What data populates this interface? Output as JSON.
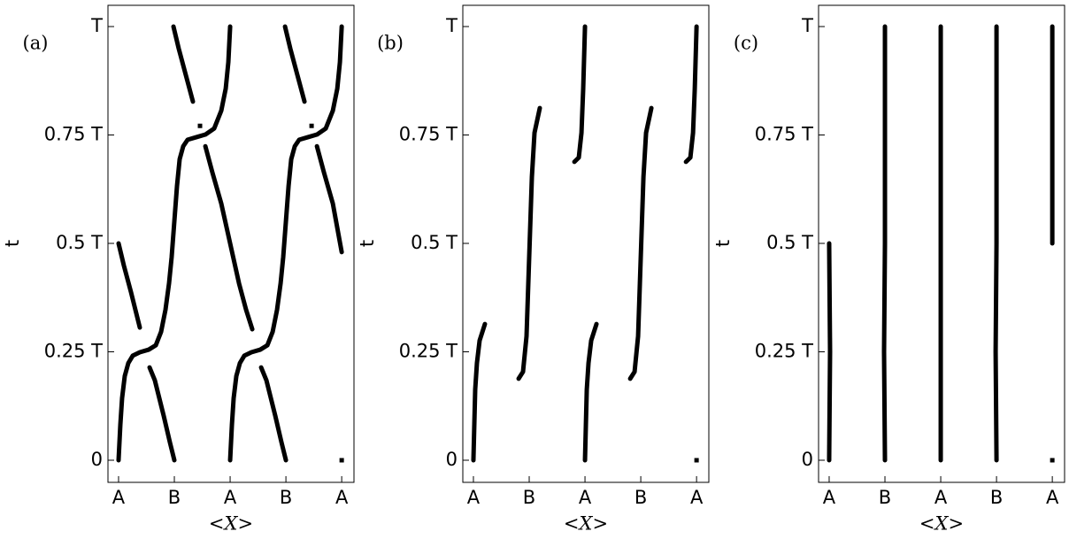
{
  "chart_data": [
    {
      "type": "line",
      "title": "(a)",
      "xlabel": "<X>",
      "ylabel": "t",
      "xlim": [
        -0.19,
        4.22
      ],
      "ylim": [
        -0.051,
        1.049
      ],
      "xticks": [
        {
          "value": 0,
          "label": "A"
        },
        {
          "value": 1,
          "label": "B"
        },
        {
          "value": 2,
          "label": "A"
        },
        {
          "value": 3,
          "label": "B"
        },
        {
          "value": 4,
          "label": "A"
        }
      ],
      "yticks": [
        0,
        {
          "value": 0.25,
          "label": "0.25 T"
        },
        {
          "value": 0.5,
          "label": "0.5 T"
        },
        {
          "value": 0.75,
          "label": "0.75 T"
        },
        {
          "value": 1,
          "label": "T"
        }
      ],
      "series": [
        {
          "color": "#000000",
          "x": [
            0,
            0.032,
            0.063,
            0.111,
            0.175,
            0.254,
            0.381,
            0.54,
            0.667,
            0.762,
            0.841,
            0.905,
            0.952,
            1.0,
            1.048,
            1.095,
            1.159,
            1.238,
            1.397,
            1.556,
            1.714,
            1.841,
            1.921,
            1.968,
            2.0
          ],
          "values": [
            0,
            0.082,
            0.143,
            0.194,
            0.224,
            0.241,
            0.249,
            0.255,
            0.265,
            0.296,
            0.347,
            0.408,
            0.469,
            0.551,
            0.633,
            0.694,
            0.724,
            0.739,
            0.745,
            0.751,
            0.765,
            0.806,
            0.857,
            0.918,
            1.0
          ]
        },
        {
          "color": "#000000",
          "x": [
            2,
            2.032,
            2.063,
            2.111,
            2.175,
            2.254,
            2.381,
            2.54,
            2.667,
            2.762,
            2.841,
            2.905,
            2.952,
            3.0,
            3.048,
            3.095,
            3.159,
            3.238,
            3.397,
            3.556,
            3.714,
            3.841,
            3.921,
            3.968,
            4.0
          ],
          "values": [
            0,
            0.082,
            0.143,
            0.194,
            0.224,
            0.241,
            0.249,
            0.255,
            0.265,
            0.296,
            0.347,
            0.408,
            0.469,
            0.551,
            0.633,
            0.694,
            0.724,
            0.739,
            0.745,
            0.751,
            0.765,
            0.806,
            0.857,
            0.918,
            1.0
          ]
        },
        {
          "color": "#000000",
          "x": [
            0,
            0.095,
            0.222,
            0.381
          ],
          "values": [
            0.5,
            0.449,
            0.388,
            0.306
          ]
        },
        {
          "color": "#000000",
          "x": [
            0.556,
            0.651,
            0.81,
            0.921,
            1.0
          ],
          "values": [
            0.214,
            0.184,
            0.102,
            0.041,
            0
          ]
        },
        {
          "color": "#000000",
          "x": [
            0.984,
            1.079,
            1.206,
            1.333
          ],
          "values": [
            1.0,
            0.949,
            0.888,
            0.827
          ]
        },
        {
          "color": "#000000",
          "x": [
            1.556,
            1.683,
            1.841,
            2.0,
            2.159,
            2.286,
            2.397
          ],
          "values": [
            0.724,
            0.663,
            0.592,
            0.5,
            0.408,
            0.347,
            0.302
          ]
        },
        {
          "color": "#000000",
          "x": [
            2.556,
            2.651,
            2.81,
            2.921,
            3.0
          ],
          "values": [
            0.214,
            0.184,
            0.102,
            0.041,
            0
          ]
        },
        {
          "color": "#000000",
          "x": [
            2.984,
            3.079,
            3.206,
            3.333
          ],
          "values": [
            1.0,
            0.949,
            0.888,
            0.827
          ]
        },
        {
          "color": "#000000",
          "x": [
            3.556,
            3.683,
            3.841,
            4.0
          ],
          "values": [
            0.724,
            0.663,
            0.592,
            0.48
          ]
        },
        {
          "color": "#000000",
          "x": [
            1.46
          ],
          "values": [
            0.771
          ]
        },
        {
          "color": "#000000",
          "x": [
            3.46
          ],
          "values": [
            0.771
          ]
        },
        {
          "color": "#000000",
          "x": [
            4.0
          ],
          "values": [
            0
          ]
        }
      ]
    },
    {
      "type": "line",
      "title": "(b)",
      "xlabel": "<X>",
      "ylabel": "t",
      "xlim": [
        -0.19,
        4.22
      ],
      "ylim": [
        -0.051,
        1.049
      ],
      "xticks": [
        {
          "value": 0,
          "label": "A"
        },
        {
          "value": 1,
          "label": "B"
        },
        {
          "value": 2,
          "label": "A"
        },
        {
          "value": 3,
          "label": "B"
        },
        {
          "value": 4,
          "label": "A"
        }
      ],
      "yticks": [
        0,
        {
          "value": 0.25,
          "label": "0.25 T"
        },
        {
          "value": 0.5,
          "label": "0.5 T"
        },
        {
          "value": 0.75,
          "label": "0.75 T"
        },
        {
          "value": 1,
          "label": "T"
        }
      ],
      "series": [
        {
          "color": "#000000",
          "x": [
            0,
            0.016,
            0.032,
            0.063,
            0.111,
            0.206
          ],
          "values": [
            0,
            0.082,
            0.163,
            0.224,
            0.276,
            0.314
          ]
        },
        {
          "color": "#000000",
          "x": [
            0.81,
            0.889,
            0.952,
            0.984,
            1.016,
            1.048,
            1.095,
            1.19
          ],
          "values": [
            0.188,
            0.204,
            0.286,
            0.408,
            0.531,
            0.653,
            0.755,
            0.812
          ]
        },
        {
          "color": "#000000",
          "x": [
            1.81,
            1.889,
            1.937,
            1.968,
            2.0
          ],
          "values": [
            0.688,
            0.698,
            0.755,
            0.857,
            1.0
          ]
        },
        {
          "color": "#000000",
          "x": [
            2,
            2.016,
            2.032,
            2.063,
            2.111,
            2.206
          ],
          "values": [
            0,
            0.082,
            0.163,
            0.224,
            0.276,
            0.314
          ]
        },
        {
          "color": "#000000",
          "x": [
            2.81,
            2.889,
            2.952,
            2.984,
            3.016,
            3.048,
            3.095,
            3.19
          ],
          "values": [
            0.188,
            0.204,
            0.286,
            0.408,
            0.531,
            0.653,
            0.755,
            0.812
          ]
        },
        {
          "color": "#000000",
          "x": [
            3.81,
            3.889,
            3.937,
            3.968,
            4.0
          ],
          "values": [
            0.688,
            0.698,
            0.755,
            0.857,
            1.0
          ]
        },
        {
          "color": "#000000",
          "x": [
            4.0
          ],
          "values": [
            0
          ]
        }
      ]
    },
    {
      "type": "line",
      "title": "(c)",
      "xlabel": "<X>",
      "ylabel": "t",
      "xlim": [
        -0.19,
        4.22
      ],
      "ylim": [
        -0.051,
        1.049
      ],
      "xticks": [
        {
          "value": 0,
          "label": "A"
        },
        {
          "value": 1,
          "label": "B"
        },
        {
          "value": 2,
          "label": "A"
        },
        {
          "value": 3,
          "label": "B"
        },
        {
          "value": 4,
          "label": "A"
        }
      ],
      "yticks": [
        0,
        {
          "value": 0.25,
          "label": "0.25 T"
        },
        {
          "value": 0.5,
          "label": "0.5 T"
        },
        {
          "value": 0.75,
          "label": "0.75 T"
        },
        {
          "value": 1,
          "label": "T"
        }
      ],
      "series": [
        {
          "color": "#000000",
          "x": [
            0,
            0.016,
            0
          ],
          "values": [
            0,
            0.25,
            0.5
          ]
        },
        {
          "color": "#000000",
          "x": [
            1.0,
            0.984,
            1.0,
            1.0,
            1.0
          ],
          "values": [
            0,
            0.25,
            0.5,
            0.75,
            1.0
          ]
        },
        {
          "color": "#000000",
          "x": [
            2.0,
            2.0,
            2.0,
            2.0,
            2.0
          ],
          "values": [
            0,
            0.25,
            0.5,
            0.75,
            1.0
          ]
        },
        {
          "color": "#000000",
          "x": [
            3.0,
            2.984,
            3.0,
            3.0,
            3.0
          ],
          "values": [
            0,
            0.25,
            0.5,
            0.75,
            1.0
          ]
        },
        {
          "color": "#000000",
          "x": [
            4.0,
            4.0,
            4.0
          ],
          "values": [
            0.5,
            0.75,
            1.0
          ]
        },
        {
          "color": "#000000",
          "x": [
            4.0
          ],
          "values": [
            0
          ]
        }
      ]
    }
  ]
}
